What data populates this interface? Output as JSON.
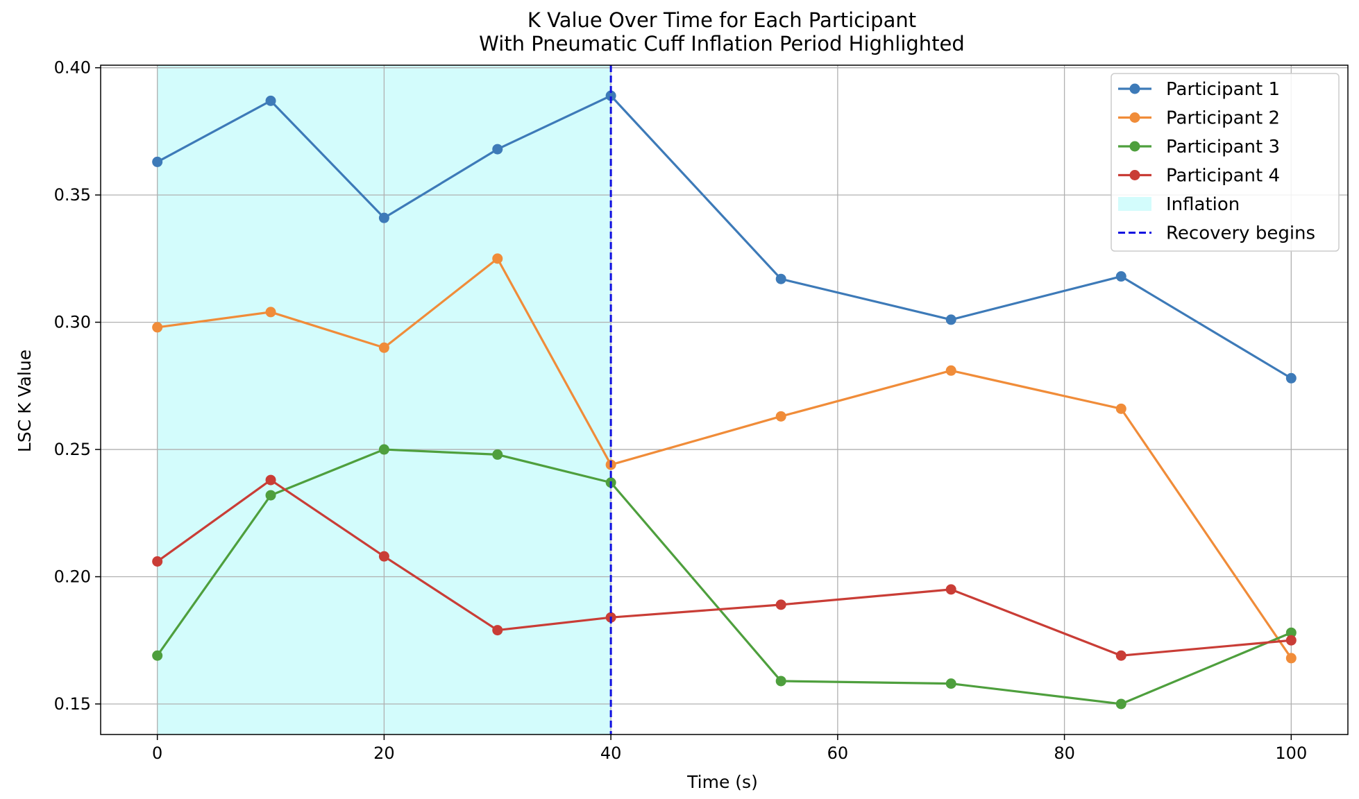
{
  "chart_data": {
    "type": "line",
    "title": "K Value Over Time for Each Participant",
    "subtitle": "With Pneumatic Cuff Inflation Period Highlighted",
    "xlabel": "Time (s)",
    "ylabel": "LSC K Value",
    "xlim": [
      -5,
      105
    ],
    "ylim": [
      0.138,
      0.401
    ],
    "xticks": [
      0,
      20,
      40,
      60,
      80,
      100
    ],
    "yticks": [
      0.15,
      0.2,
      0.25,
      0.3,
      0.35,
      0.4
    ],
    "xtick_labels": [
      "0",
      "20",
      "40",
      "60",
      "80",
      "100"
    ],
    "ytick_labels": [
      "0.15",
      "0.20",
      "0.25",
      "0.30",
      "0.35",
      "0.40"
    ],
    "grid": true,
    "legend_position": "top-right",
    "x": [
      0,
      10,
      20,
      30,
      40,
      55,
      70,
      85,
      100
    ],
    "series": [
      {
        "name": "Participant 1",
        "color": "#3d7ab8",
        "values": [
          0.363,
          0.387,
          0.341,
          0.368,
          0.389,
          0.317,
          0.301,
          0.318,
          0.278
        ]
      },
      {
        "name": "Participant 2",
        "color": "#f08c39",
        "values": [
          0.298,
          0.304,
          0.29,
          0.325,
          0.244,
          0.263,
          0.281,
          0.266,
          0.168
        ]
      },
      {
        "name": "Participant 3",
        "color": "#4e9f3d",
        "values": [
          0.169,
          0.232,
          0.25,
          0.248,
          0.237,
          0.159,
          0.158,
          0.15,
          0.178
        ]
      },
      {
        "name": "Participant 4",
        "color": "#c93d36",
        "values": [
          0.206,
          0.238,
          0.208,
          0.179,
          0.184,
          0.189,
          0.195,
          0.169,
          0.175
        ]
      }
    ],
    "shaded_region": {
      "name": "Inflation",
      "x_start": 0,
      "x_end": 40,
      "color": "#d3fcfc"
    },
    "vertical_line": {
      "name": "Recovery begins",
      "x": 40,
      "color": "#1010e0",
      "style": "dashed"
    }
  }
}
